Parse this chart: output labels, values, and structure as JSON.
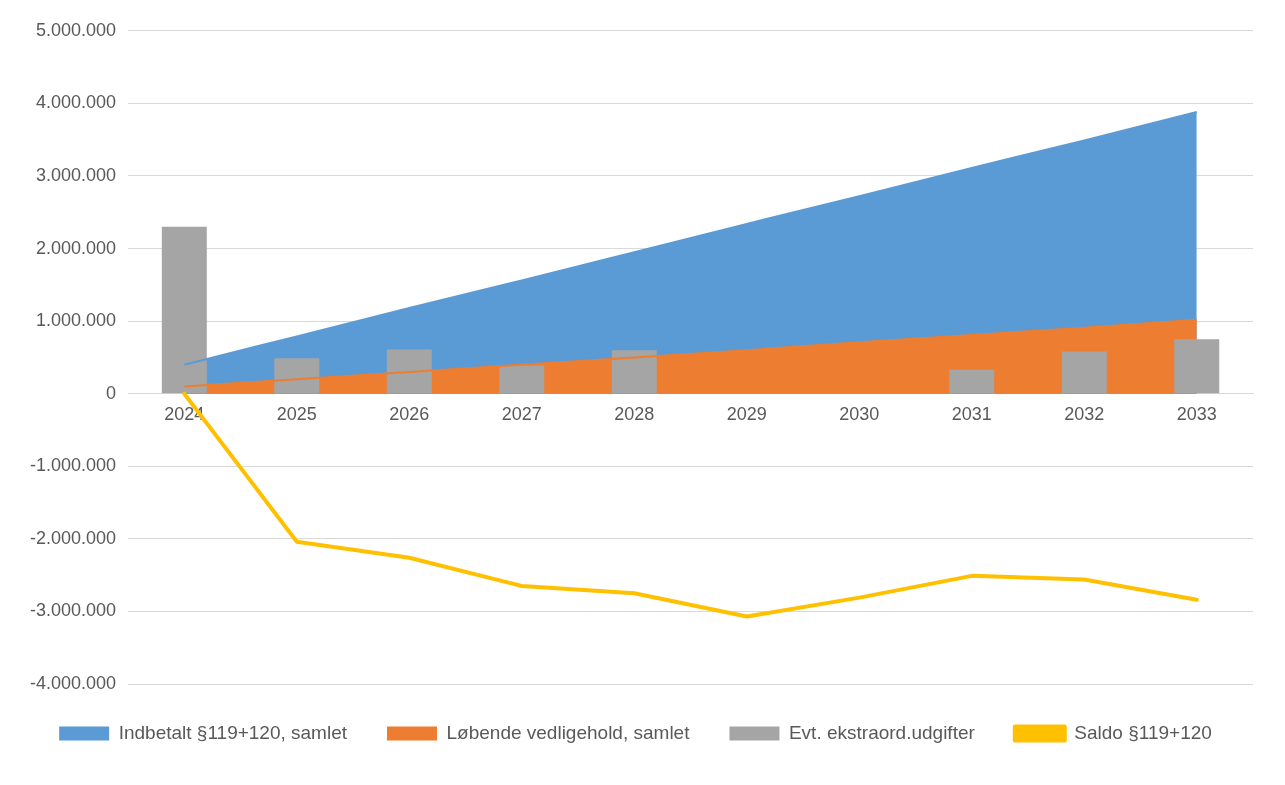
{
  "chart_data": {
    "type": "bar",
    "categories": [
      "2024",
      "2025",
      "2026",
      "2027",
      "2028",
      "2029",
      "2030",
      "2031",
      "2032",
      "2033"
    ],
    "series": [
      {
        "name": "Indbetalt §119+120, samlet",
        "type": "area",
        "color": "#5b9bd5",
        "values": [
          400000,
          790000,
          1180000,
          1560000,
          1950000,
          2340000,
          2720000,
          3110000,
          3490000,
          3880000
        ]
      },
      {
        "name": "Løbende vedligehold, samlet",
        "type": "area",
        "color": "#ed7d31",
        "values": [
          100000,
          200000,
          300000,
          400000,
          500000,
          600000,
          710000,
          810000,
          910000,
          1020000
        ]
      },
      {
        "name": "Evt. ekstraord.udgifter",
        "color": "#a5a5a5",
        "values": [
          2300000,
          490000,
          610000,
          390000,
          600000,
          0,
          0,
          330000,
          580000,
          750000
        ]
      },
      {
        "name": "Saldo §119+120",
        "type": "line",
        "color": "#ffc000",
        "values": [
          0,
          -2040000,
          -2260000,
          -2650000,
          -2750000,
          -3070000,
          -2810000,
          -2510000,
          -2560000,
          -2840000
        ]
      }
    ],
    "ylim": [
      -4000000,
      5000000
    ],
    "yticks": [
      {
        "value": -4000000,
        "label": "-4.000.000"
      },
      {
        "value": -3000000,
        "label": "-3.000.000"
      },
      {
        "value": -2000000,
        "label": "-2.000.000"
      },
      {
        "value": -1000000,
        "label": "-1.000.000"
      },
      0,
      {
        "value": 1000000,
        "label": "1.000.000"
      },
      {
        "value": 2000000,
        "label": "2.000.000"
      },
      {
        "value": 3000000,
        "label": "3.000.000"
      },
      {
        "value": 4000000,
        "label": "4.000.000"
      },
      {
        "value": 5000000,
        "label": "5.000.000"
      }
    ],
    "grid": "y",
    "legend": "bottom"
  }
}
